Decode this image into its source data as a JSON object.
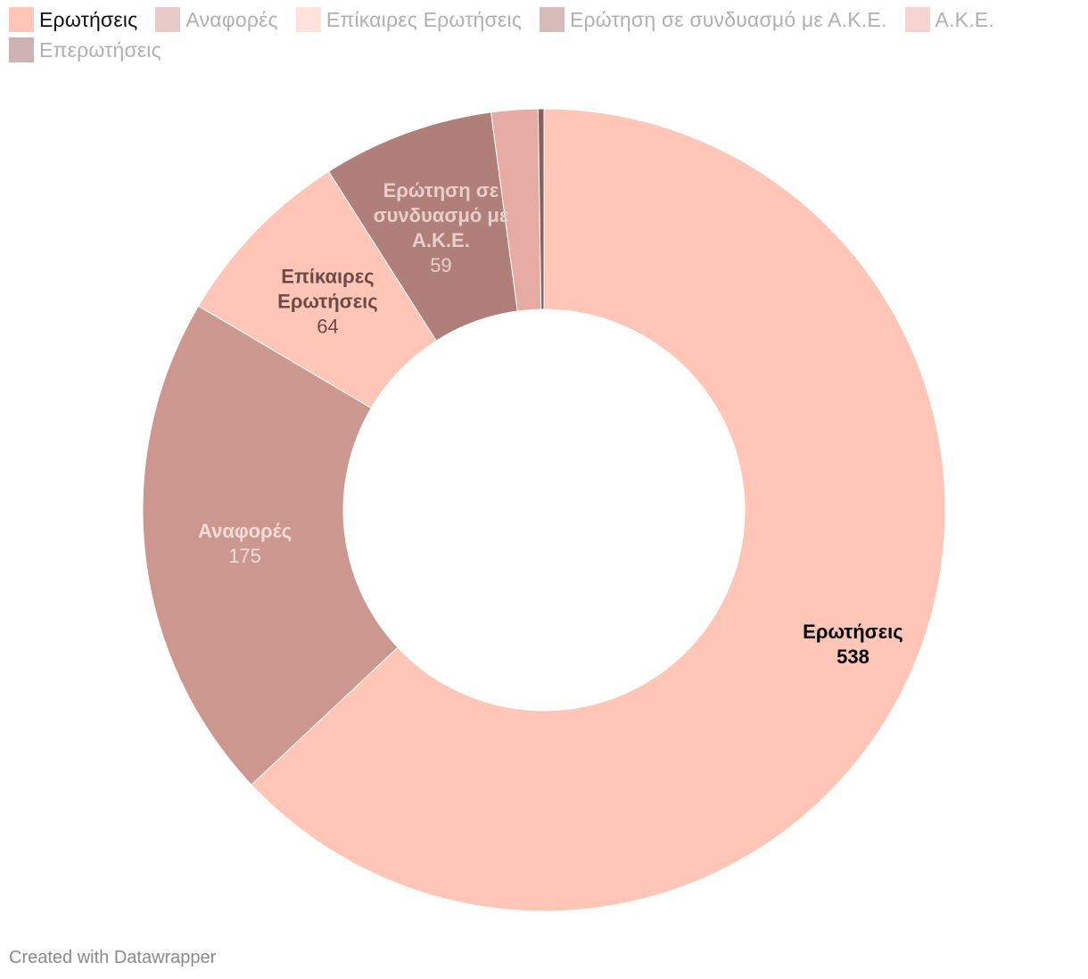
{
  "chart_data": {
    "type": "donut",
    "title": "",
    "categories": [
      "Ερωτήσεις",
      "Αναφορές",
      "Επίκαιρες Ερωτήσεις",
      "Ερώτηση σε συνδυασμό με Α.Κ.Ε.",
      "Α.Κ.Ε.",
      "Επερωτήσεις"
    ],
    "values": [
      538,
      175,
      64,
      59,
      16,
      2
    ],
    "colors": [
      "#ffc6b8",
      "#cc978f",
      "#ffc6b8",
      "#b07f79",
      "#e6aba2",
      "#8c5f5a"
    ],
    "legend_colors": [
      "#ffc6b8",
      "#e8cbc9",
      "#ffe2dc",
      "#d6bbb8",
      "#f5d3d0",
      "#cfb2b3"
    ],
    "slice_labels": [
      {
        "lines": [
          "Ερωτήσεις"
        ],
        "value": "538",
        "name_color": "#000000",
        "value_color": "#000000",
        "value_bold": true
      },
      {
        "lines": [
          "Αναφορές"
        ],
        "value": "175",
        "name_color": "#f6dcd8",
        "value_color": "#f6dcd8",
        "value_bold": false
      },
      {
        "lines": [
          "Επίκαιρες",
          "Ερωτήσεις"
        ],
        "value": "64",
        "name_color": "#6b4b47",
        "value_color": "#6b4b47",
        "value_bold": false
      },
      {
        "lines": [
          "Ερώτηση σε",
          "συνδυασμό με",
          "Α.Κ.Ε."
        ],
        "value": "59",
        "name_color": "#e9cfcb",
        "value_color": "#e9cfcb",
        "value_bold": false
      }
    ],
    "legend_position": "top-left",
    "active_legend_index": 0
  },
  "legend": {
    "items": [
      {
        "label": "Ερωτήσεις"
      },
      {
        "label": "Αναφορές"
      },
      {
        "label": "Επίκαιρες Ερωτήσεις"
      },
      {
        "label": "Ερώτηση σε συνδυασμό με Α.Κ.Ε."
      },
      {
        "label": "Α.Κ.Ε."
      },
      {
        "label": "Επερωτήσεις"
      }
    ]
  },
  "footer": {
    "credit": "Created with Datawrapper"
  }
}
